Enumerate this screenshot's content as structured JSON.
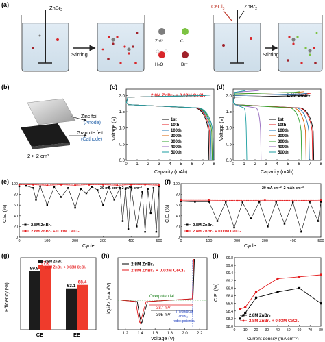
{
  "panel_letters": [
    "(a)",
    "(b)",
    "(c)",
    "(d)",
    "(e)",
    "(f)",
    "(g)",
    "(h)",
    "(i)"
  ],
  "panel_a": {
    "beaker1_label": "ZnBr",
    "beaker1_sub": "2",
    "arrow1_label": "Stirring",
    "legend": [
      {
        "symbol": "Zn²⁺",
        "color": "#7d7d7d"
      },
      {
        "symbol": "Cl⁻",
        "color": "#7cc242"
      },
      {
        "symbol": "H₂O",
        "color": "#d8262a"
      },
      {
        "symbol": "Br⁻",
        "color": "#a0222a"
      }
    ],
    "beaker3_label_a": "CeCl",
    "beaker3_label_a_sub": "3",
    "beaker3_label_b": "ZnBr",
    "beaker3_label_b_sub": "2",
    "arrow2_label": "Stirring"
  },
  "panel_b": {
    "zinc_label": "Zinc foil",
    "anode_label": "(Anode)",
    "felt_label": "Graphite felt",
    "cathode_label": "(Cathode)",
    "area_label": "2 × 2 cm²"
  },
  "panel_c": {
    "title": "2.8M ZnBr₂ + 0.03M CeCl₃",
    "xlabel": "Capacity (mAh)",
    "ylabel": "Voltage (V)",
    "xticks": [
      "0",
      "1",
      "2",
      "3",
      "4",
      "5",
      "6",
      "7",
      "8"
    ],
    "yticks": [
      "0.0",
      "0.5",
      "1.0",
      "1.5",
      "2.0"
    ],
    "legend": [
      "1st",
      "10th",
      "100th",
      "200th",
      "300th",
      "400th",
      "500th"
    ]
  },
  "panel_d": {
    "title": "2.8M ZnBr₂",
    "xlabel": "Capacity (mAh)",
    "ylabel": "Voltage (V)",
    "xticks": [
      "0",
      "1",
      "2",
      "3",
      "4",
      "5",
      "6",
      "7",
      "8"
    ],
    "yticks": [
      "0.0",
      "0.5",
      "1.0",
      "1.5",
      "2.0"
    ],
    "legend": [
      "1st",
      "10th",
      "100th",
      "200th",
      "300th",
      "400th",
      "500th"
    ]
  },
  "series_colors": [
    "#000000",
    "#e41a1c",
    "#1f78b4",
    "#d95f02",
    "#2ca02c",
    "#9467bd",
    "#1b9ea0"
  ],
  "panel_e": {
    "annotation": "20 mA cm⁻², 2 mAh cm⁻²",
    "xlabel": "Cycle",
    "ylabel": "C.E. (%)",
    "xticks": [
      "0",
      "100",
      "200",
      "300",
      "400",
      "500"
    ],
    "yticks": [
      "0",
      "20",
      "40",
      "60",
      "80",
      "100"
    ],
    "legend": [
      "2.8M ZnBr₂",
      "2.8M ZnBr₂ + 0.03M CeCl₃"
    ]
  },
  "panel_f": {
    "annotation": "20 mA cm⁻², 2 mAh cm⁻²",
    "xlabel": "Cycle",
    "ylabel": "C.E. (%)",
    "xticks": [
      "0",
      "100",
      "200",
      "300",
      "400",
      "500"
    ],
    "yticks": [
      "0",
      "20",
      "40",
      "60",
      "80",
      "100"
    ],
    "legend": [
      "2.8M ZnBr₂",
      "2.8M ZnBr₂ + 0.03M CeCl₃"
    ]
  },
  "panel_g": {
    "ylabel": "Efficiency (%)",
    "categories": [
      "CE",
      "EE"
    ],
    "legend": [
      "2.8M ZnBr₂",
      "2.8M ZnBr₂ + 0.03M CeCl₃"
    ],
    "values_a": [
      89.8,
      63.1
    ],
    "values_b": [
      97.8,
      68.4
    ],
    "labels_a": [
      "89.8",
      "63.1"
    ],
    "labels_b": [
      "97.8",
      "68.4"
    ]
  },
  "panel_h": {
    "xlabel": "Voltage (V)",
    "ylabel": "dQ/dV (mAh/V)",
    "xticks": [
      "1.2",
      "1.4",
      "1.6",
      "1.8",
      "2.0",
      "2.2"
    ],
    "legend": [
      "2.8M ZnBr₂",
      "2.8M ZnBr₂ + 0.03M CeCl₃"
    ],
    "overpotential": "Overpotential",
    "mv1": "387 mV",
    "mv2": "395 mV",
    "theory1": "Theoretical",
    "theory2": "Zn/Br₂",
    "theory3": "redox potential"
  },
  "panel_i": {
    "xlabel": "Current density (mA cm⁻²)",
    "ylabel": "C.E. (%)",
    "xticks": [
      "0",
      "10",
      "20",
      "30",
      "40",
      "50",
      "60",
      "70",
      "80"
    ],
    "yticks": [
      "98.0",
      "98.2",
      "98.4",
      "98.6",
      "98.8",
      "99.0",
      "99.2",
      "99.4",
      "99.6",
      "99.8"
    ],
    "legend": [
      "2.8M ZnBr₂",
      "2.8M ZnBr₂ + 0.03M CeCl₃"
    ]
  },
  "chart_data": [
    {
      "type": "line",
      "id": "c",
      "title": "2.8M ZnBr₂ + 0.03M CeCl₃",
      "xlabel": "Capacity (mAh)",
      "ylabel": "Voltage (V)",
      "xlim": [
        0,
        8
      ],
      "ylim": [
        0,
        2.2
      ],
      "series": [
        {
          "name": "1st",
          "charge_v": 2.0,
          "discharge_end_cap": 7.5
        },
        {
          "name": "10th",
          "charge_v": 2.0,
          "discharge_end_cap": 7.6
        },
        {
          "name": "100th",
          "charge_v": 2.0,
          "discharge_end_cap": 7.7
        },
        {
          "name": "200th",
          "charge_v": 2.0,
          "discharge_end_cap": 7.8
        },
        {
          "name": "300th",
          "charge_v": 2.0,
          "discharge_end_cap": 7.8
        },
        {
          "name": "400th",
          "charge_v": 2.0,
          "discharge_end_cap": 7.9
        },
        {
          "name": "500th",
          "charge_v": 2.0,
          "discharge_end_cap": 7.9
        }
      ]
    },
    {
      "type": "line",
      "id": "d",
      "title": "2.8M ZnBr₂",
      "xlabel": "Capacity (mAh)",
      "ylabel": "Voltage (V)",
      "xlim": [
        0,
        8
      ],
      "ylim": [
        0,
        2.2
      ],
      "series": [
        {
          "name": "1st",
          "charge_v": 2.0,
          "discharge_end_cap": 7.3
        },
        {
          "name": "10th",
          "charge_v": 2.05,
          "discharge_end_cap": 7.2
        },
        {
          "name": "100th",
          "charge_v": 2.05,
          "discharge_end_cap": 6.9
        },
        {
          "name": "200th",
          "charge_v": 2.1,
          "discharge_end_cap": 6.6
        },
        {
          "name": "300th",
          "charge_v": 2.1,
          "discharge_end_cap": 6.2
        },
        {
          "name": "400th",
          "charge_v": 2.15,
          "discharge_end_cap": 2.5
        },
        {
          "name": "500th",
          "charge_v": 2.15,
          "discharge_end_cap": 1.2
        }
      ]
    },
    {
      "type": "scatter",
      "id": "e",
      "xlabel": "Cycle",
      "ylabel": "C.E. (%)",
      "xlim": [
        0,
        500
      ],
      "ylim": [
        0,
        100
      ],
      "series": [
        {
          "name": "2.8M ZnBr₂",
          "x": [
            0,
            25,
            50,
            60,
            75,
            100,
            125,
            150,
            175,
            200,
            220,
            240,
            260,
            280,
            300,
            320,
            340,
            360,
            370,
            380,
            390,
            400,
            420,
            440,
            450,
            460,
            470,
            480,
            490,
            500
          ],
          "y": [
            95,
            96,
            92,
            70,
            95,
            60,
            94,
            75,
            92,
            55,
            90,
            82,
            94,
            88,
            60,
            93,
            70,
            92,
            30,
            90,
            15,
            93,
            20,
            85,
            10,
            90,
            45,
            92,
            10,
            95
          ]
        },
        {
          "name": "2.8M ZnBr₂ + 0.03M CeCl₃",
          "x": [
            0,
            50,
            100,
            150,
            200,
            250,
            300,
            350,
            400,
            450,
            500
          ],
          "y": [
            98,
            98,
            97,
            98,
            97,
            98,
            98,
            97,
            98,
            98,
            97
          ]
        }
      ]
    },
    {
      "type": "scatter",
      "id": "f",
      "xlabel": "Cycle",
      "ylabel": "C.E. (%)",
      "xlim": [
        0,
        500
      ],
      "ylim": [
        0,
        100
      ],
      "series": [
        {
          "name": "2.8M ZnBr₂",
          "x": [
            0,
            50,
            100,
            130,
            160,
            190,
            220,
            250,
            280,
            310,
            340,
            370,
            400,
            430,
            460,
            490,
            500
          ],
          "y": [
            67,
            66,
            66,
            30,
            66,
            18,
            65,
            35,
            66,
            20,
            66,
            25,
            65,
            10,
            66,
            30,
            66
          ]
        },
        {
          "name": "2.8M ZnBr₂ + 0.03M CeCl₃",
          "x": [
            0,
            100,
            200,
            300,
            400,
            500
          ],
          "y": [
            69,
            69,
            68,
            69,
            68,
            69
          ]
        }
      ]
    },
    {
      "type": "bar",
      "id": "g",
      "categories": [
        "CE",
        "EE"
      ],
      "ylabel": "Efficiency (%)",
      "ylim": [
        0,
        110
      ],
      "series": [
        {
          "name": "2.8M ZnBr₂",
          "values": [
            89.8,
            63.1
          ]
        },
        {
          "name": "2.8M ZnBr₂ + 0.03M CeCl₃",
          "values": [
            97.8,
            68.4
          ]
        }
      ]
    },
    {
      "type": "line",
      "id": "h",
      "xlabel": "Voltage (V)",
      "ylabel": "dQ/dV (mAh/V)",
      "xlim": [
        1.1,
        2.3
      ],
      "series": [
        {
          "name": "2.8M ZnBr₂",
          "discharge_peak_v": 1.42,
          "charge_rise_v": 2.11
        },
        {
          "name": "2.8M ZnBr₂ + 0.03M CeCl₃",
          "discharge_peak_v": 1.4,
          "charge_rise_v": 2.1
        }
      ]
    },
    {
      "type": "line",
      "id": "i",
      "xlabel": "Current density (mA cm⁻²)",
      "ylabel": "C.E. (%)",
      "xlim": [
        0,
        80
      ],
      "ylim": [
        98.0,
        99.8
      ],
      "series": [
        {
          "name": "2.8M ZnBr₂",
          "x": [
            5,
            10,
            20,
            40,
            60,
            80
          ],
          "y": [
            98.2,
            98.35,
            98.75,
            98.9,
            99.0,
            98.6
          ]
        },
        {
          "name": "2.8M ZnBr₂ + 0.03M CeCl₃",
          "x": [
            5,
            10,
            20,
            40,
            60,
            80
          ],
          "y": [
            98.45,
            98.5,
            98.9,
            99.25,
            99.3,
            99.35
          ]
        }
      ]
    }
  ]
}
